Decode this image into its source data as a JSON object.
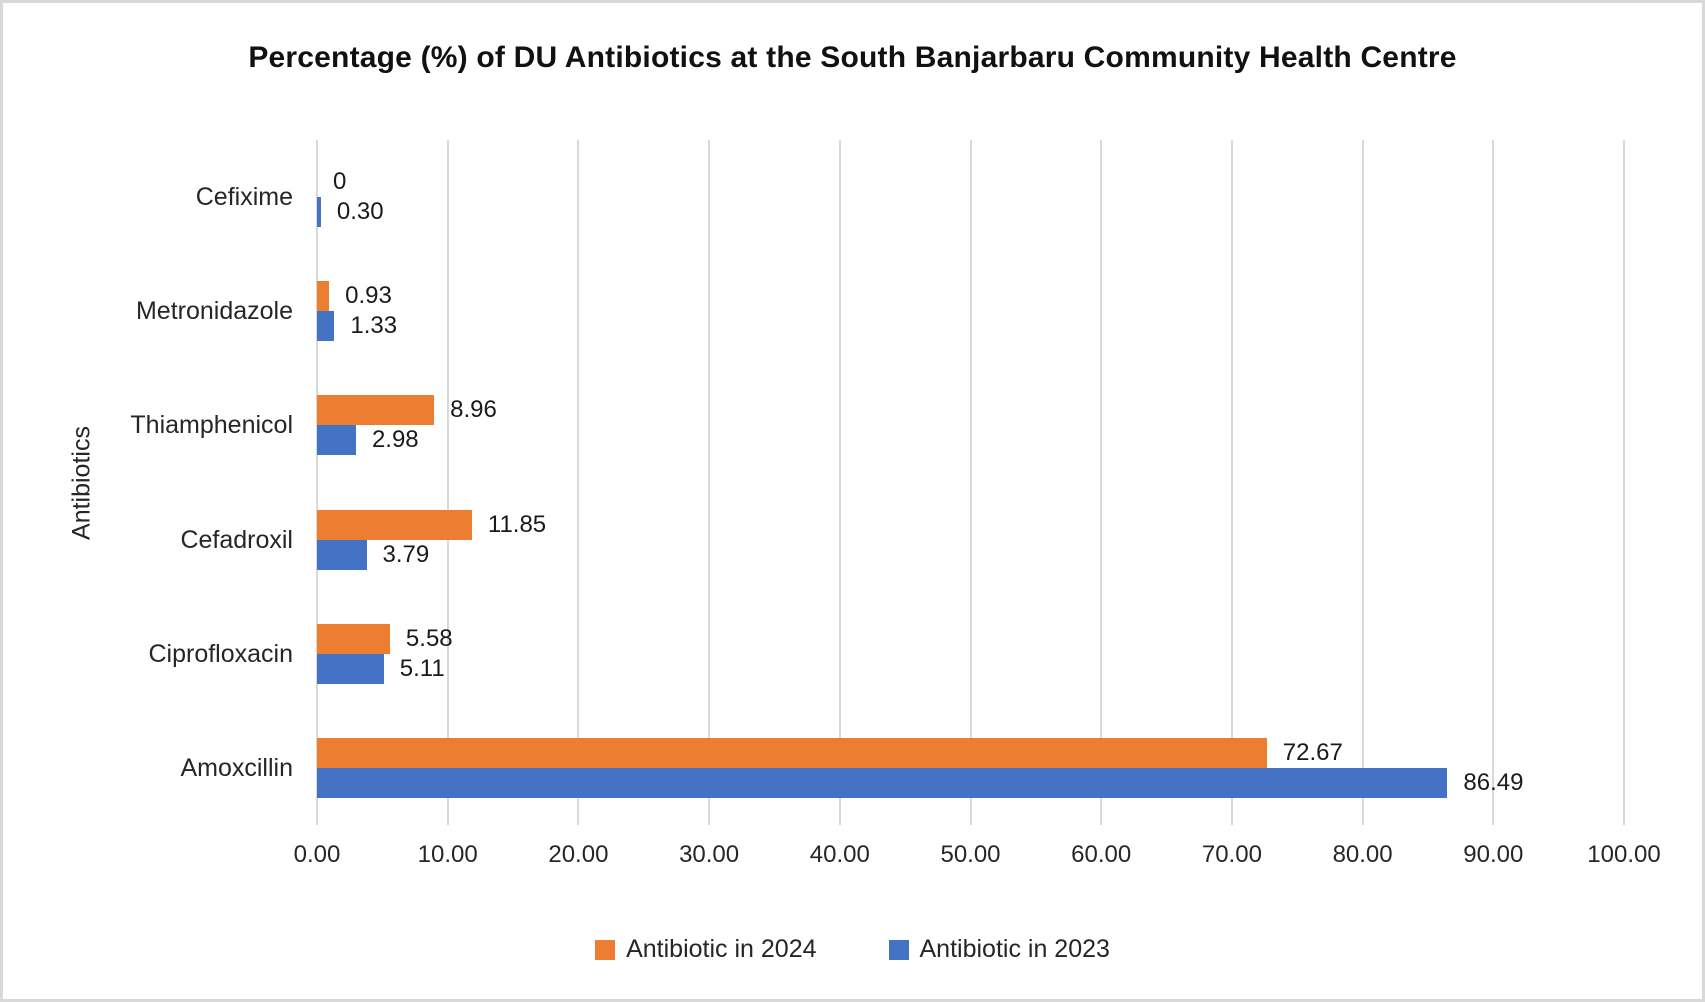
{
  "chart_data": {
    "type": "bar",
    "orientation": "horizontal",
    "title": "Percentage (%) of DU Antibiotics at the South Banjarbaru Community Health Centre",
    "ylabel": "Antibiotics",
    "xlabel": "",
    "categories": [
      "Cefixime",
      "Metronidazole",
      "Thiamphenicol",
      "Cefadroxil",
      "Ciprofloxacin",
      "Amoxcillin"
    ],
    "series": [
      {
        "name": "Antibiotic in 2024",
        "color": "#ED7D31",
        "values": [
          0,
          0.93,
          8.96,
          11.85,
          5.58,
          72.67
        ],
        "labels": [
          "0",
          "0.93",
          "8.96",
          "11.85",
          "5.58",
          "72.67"
        ]
      },
      {
        "name": "Antibiotic in 2023",
        "color": "#4472C4",
        "values": [
          0.3,
          1.33,
          2.98,
          3.79,
          5.11,
          86.49
        ],
        "labels": [
          "0.30",
          "1.33",
          "2.98",
          "3.79",
          "5.11",
          "86.49"
        ]
      }
    ],
    "xlim": [
      0,
      100
    ],
    "xticks": [
      "0.00",
      "10.00",
      "20.00",
      "30.00",
      "40.00",
      "50.00",
      "60.00",
      "70.00",
      "80.00",
      "90.00",
      "100.00"
    ],
    "grid": true,
    "legend_position": "bottom",
    "gridline_color": "#D9D9D9"
  }
}
